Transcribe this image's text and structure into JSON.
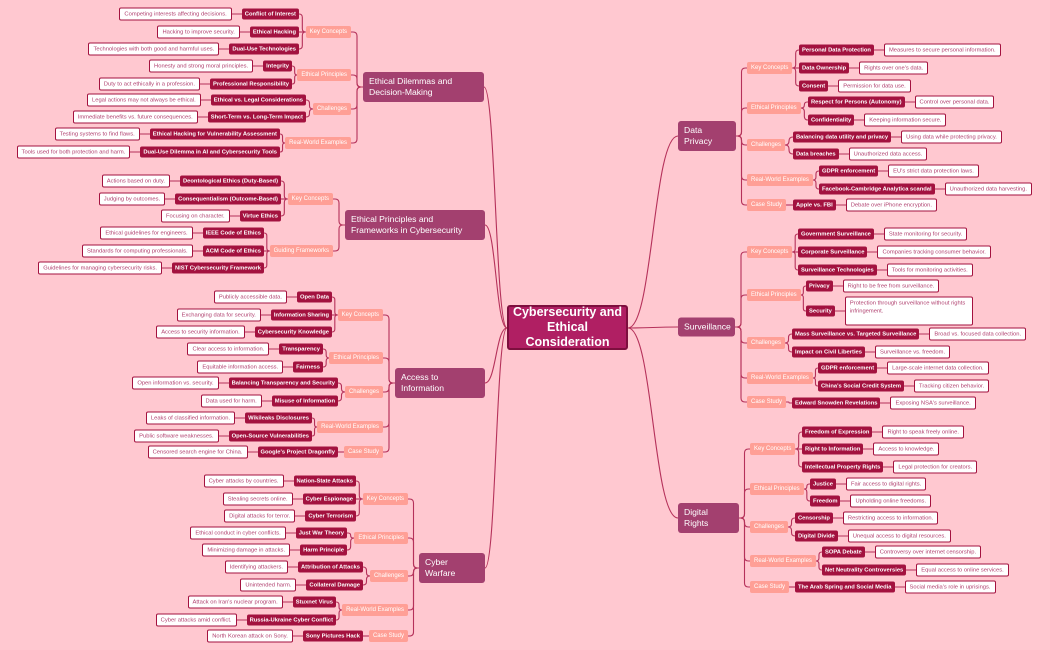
{
  "colors": {
    "background": "#ffc8d0",
    "central": "#b01f63",
    "topic": "#a3406f",
    "category": "#ff9f96",
    "concept": "#a3123f",
    "description_text": "#b0406f",
    "line": "#b5315a"
  },
  "central": "Cybersecurity and Ethical Consideration",
  "left": [
    {
      "title": "Ethical Dilemmas and Decision-Making",
      "categories": [
        {
          "label": "Key Concepts",
          "items": [
            {
              "name": "Conflict of Interest",
              "desc": "Competing interests affecting decisions."
            },
            {
              "name": "Ethical Hacking",
              "desc": "Hacking to improve security."
            },
            {
              "name": "Dual-Use Technologies",
              "desc": "Technologies with both good and harmful uses."
            }
          ]
        },
        {
          "label": "Ethical Principles",
          "items": [
            {
              "name": "Integrity",
              "desc": "Honesty and strong moral principles."
            },
            {
              "name": "Professional Responsibility",
              "desc": "Duty to act ethically in a profession."
            }
          ]
        },
        {
          "label": "Challenges",
          "items": [
            {
              "name": "Ethical vs. Legal Considerations",
              "desc": "Legal actions may not always be ethical."
            },
            {
              "name": "Short-Term vs. Long-Term Impact",
              "desc": "Immediate benefits vs. future consequences."
            }
          ]
        },
        {
          "label": "Real-World Examples",
          "items": [
            {
              "name": "Ethical Hacking for Vulnerability Assessment",
              "desc": "Testing systems to find flaws."
            },
            {
              "name": "Dual-Use Dilemma in AI and Cybersecurity Tools",
              "desc": "Tools used for both protection and harm."
            }
          ]
        }
      ]
    },
    {
      "title": "Ethical Principles and Frameworks in Cybersecurity",
      "categories": [
        {
          "label": "Key Concepts",
          "items": [
            {
              "name": "Deontological Ethics (Duty-Based)",
              "desc": "Actions based on duty."
            },
            {
              "name": "Consequentialism (Outcome-Based)",
              "desc": "Judging by outcomes."
            },
            {
              "name": "Virtue Ethics",
              "desc": "Focusing on character."
            }
          ]
        },
        {
          "label": "Guiding Frameworks",
          "items": [
            {
              "name": "IEEE Code of Ethics",
              "desc": "Ethical guidelines for engineers."
            },
            {
              "name": "ACM Code of Ethics",
              "desc": "Standards for computing professionals."
            },
            {
              "name": "NIST Cybersecurity Framework",
              "desc": "Guidelines for managing cybersecurity risks."
            }
          ]
        }
      ]
    },
    {
      "title": "Access to Information",
      "categories": [
        {
          "label": "Key Concepts",
          "items": [
            {
              "name": "Open Data",
              "desc": "Publicly accessible data."
            },
            {
              "name": "Information Sharing",
              "desc": "Exchanging data for security."
            },
            {
              "name": "Cybersecurity Knowledge",
              "desc": "Access to security information."
            }
          ]
        },
        {
          "label": "Ethical Principles",
          "items": [
            {
              "name": "Transparency",
              "desc": "Clear access to information."
            },
            {
              "name": "Fairness",
              "desc": "Equitable information access."
            }
          ]
        },
        {
          "label": "Challenges",
          "items": [
            {
              "name": "Balancing Transparency and Security",
              "desc": "Open information vs. security."
            },
            {
              "name": "Misuse of Information",
              "desc": "Data used for harm."
            }
          ]
        },
        {
          "label": "Real-World Examples",
          "items": [
            {
              "name": "Wikileaks Disclosures",
              "desc": "Leaks of classified information."
            },
            {
              "name": "Open-Source Vulnerabilities",
              "desc": "Public software weaknesses."
            }
          ]
        },
        {
          "label": "Case Study",
          "items": [
            {
              "name": "Google's Project Dragonfly",
              "desc": "Censored search engine for China."
            }
          ]
        }
      ]
    },
    {
      "title": "Cyber Warfare",
      "categories": [
        {
          "label": "Key Concepts",
          "items": [
            {
              "name": "Nation-State Attacks",
              "desc": "Cyber attacks by countries."
            },
            {
              "name": "Cyber Espionage",
              "desc": "Stealing secrets online."
            },
            {
              "name": "Cyber Terrorism",
              "desc": "Digital attacks for terror."
            }
          ]
        },
        {
          "label": "Ethical Principles",
          "items": [
            {
              "name": "Just War Theory",
              "desc": "Ethical conduct in cyber conflicts."
            },
            {
              "name": "Harm Principle",
              "desc": "Minimizing damage in attacks."
            }
          ]
        },
        {
          "label": "Challenges",
          "items": [
            {
              "name": "Attribution of Attacks",
              "desc": "Identifying attackers."
            },
            {
              "name": "Collateral Damage",
              "desc": "Unintended harm."
            }
          ]
        },
        {
          "label": "Real-World Examples",
          "items": [
            {
              "name": "Stuxnet Virus",
              "desc": "Attack on Iran's nuclear program."
            },
            {
              "name": "Russia-Ukraine Cyber Conflict",
              "desc": "Cyber attacks amid conflict."
            }
          ]
        },
        {
          "label": "Case Study",
          "items": [
            {
              "name": "Sony Pictures Hack",
              "desc": "North Korean attack on Sony."
            }
          ]
        }
      ]
    }
  ],
  "right": [
    {
      "title": "Data Privacy",
      "categories": [
        {
          "label": "Key Concepts",
          "items": [
            {
              "name": "Personal Data Protection",
              "desc": "Measures to secure personal information."
            },
            {
              "name": "Data Ownership",
              "desc": "Rights over one's data."
            },
            {
              "name": "Consent",
              "desc": "Permission for data use."
            }
          ]
        },
        {
          "label": "Ethical Principles",
          "items": [
            {
              "name": "Respect for Persons (Autonomy)",
              "desc": "Control over personal data."
            },
            {
              "name": "Confidentiality",
              "desc": "Keeping information secure."
            }
          ]
        },
        {
          "label": "Challenges",
          "items": [
            {
              "name": "Balancing data utility and privacy",
              "desc": "Using data while protecting privacy."
            },
            {
              "name": "Data breaches",
              "desc": "Unauthorized data access."
            }
          ]
        },
        {
          "label": "Real-World Examples",
          "items": [
            {
              "name": "GDPR enforcement",
              "desc": "EU's strict data protection laws."
            },
            {
              "name": "Facebook-Cambridge Analytica scandal",
              "desc": "Unauthorized data harvesting."
            }
          ]
        },
        {
          "label": "Case Study",
          "items": [
            {
              "name": "Apple vs. FBI",
              "desc": "Debate over iPhone encryption."
            }
          ]
        }
      ]
    },
    {
      "title": "Surveillance",
      "categories": [
        {
          "label": "Key Concepts",
          "items": [
            {
              "name": "Government Surveillance",
              "desc": "State monitoring for security."
            },
            {
              "name": "Corporate Surveillance",
              "desc": "Companies tracking consumer behavior."
            },
            {
              "name": "Surveillance Technologies",
              "desc": "Tools for monitoring activities."
            }
          ]
        },
        {
          "label": "Ethical Principles",
          "items": [
            {
              "name": "Privacy",
              "desc": "Right to be free from surveillance."
            },
            {
              "name": "Security",
              "desc": "Protection through surveillance without rights infringement."
            }
          ]
        },
        {
          "label": "Challenges",
          "items": [
            {
              "name": "Mass Surveillance vs. Targeted Surveillance",
              "desc": "Broad vs. focused data collection."
            },
            {
              "name": "Impact on Civil Liberties",
              "desc": "Surveillance vs. freedom."
            }
          ]
        },
        {
          "label": "Real-World Examples",
          "items": [
            {
              "name": "GDPR enforcement",
              "desc": "Large-scale internet data collection."
            },
            {
              "name": "China's Social Credit System",
              "desc": "Tracking citizen behavior."
            }
          ]
        },
        {
          "label": "Case Study",
          "items": [
            {
              "name": "Edward Snowden Revelations",
              "desc": "Exposing NSA's surveillance."
            }
          ]
        }
      ]
    },
    {
      "title": "Digital Rights",
      "categories": [
        {
          "label": "Key Concepts",
          "items": [
            {
              "name": "Freedom of Expression",
              "desc": "Right to speak freely online."
            },
            {
              "name": "Right to Information",
              "desc": "Access to knowledge."
            },
            {
              "name": "Intellectual Property Rights",
              "desc": "Legal protection for creators."
            }
          ]
        },
        {
          "label": "Ethical Principles",
          "items": [
            {
              "name": "Justice",
              "desc": "Fair access to digital rights."
            },
            {
              "name": "Freedom",
              "desc": "Upholding online freedoms."
            }
          ]
        },
        {
          "label": "Challenges",
          "items": [
            {
              "name": "Censorship",
              "desc": "Restricting access to information."
            },
            {
              "name": "Digital Divide",
              "desc": "Unequal access to digital resources."
            }
          ]
        },
        {
          "label": "Real-World Examples",
          "items": [
            {
              "name": "SOPA Debate",
              "desc": "Controversy over internet censorship."
            },
            {
              "name": "Net Neutrality Controversies",
              "desc": "Equal access to online services."
            }
          ]
        },
        {
          "label": "Case Study",
          "items": [
            {
              "name": "The Arab Spring and Social Media",
              "desc": "Social media's role in uprisings."
            }
          ]
        }
      ]
    }
  ]
}
